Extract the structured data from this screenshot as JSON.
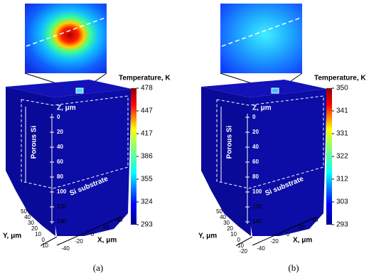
{
  "panels": [
    {
      "label": "(a)",
      "colorbar": {
        "title": "Temperature, K",
        "ticks": [
          478,
          447,
          417,
          386,
          355,
          324,
          293
        ]
      },
      "porous": "Porous Si",
      "substrate": "Si substrate",
      "z_label": "Z, μm",
      "z_ticks": [
        0,
        20,
        40,
        60,
        80,
        100,
        120,
        140
      ],
      "y_label": "Y, μm",
      "y_ticks": [
        50,
        40,
        30,
        20,
        10,
        0,
        -10
      ],
      "x_label": "X, μm",
      "x_ticks": [
        -40,
        -20,
        0,
        20,
        40
      ]
    },
    {
      "label": "(b)",
      "colorbar": {
        "title": "Temperature, K",
        "ticks": [
          350,
          341,
          331,
          322,
          312,
          303,
          293
        ]
      },
      "porous": "Porous Si",
      "substrate": "Si substrate",
      "z_label": "Z, μm",
      "z_ticks": [
        0,
        20,
        40,
        60,
        80,
        100,
        120,
        140
      ],
      "y_label": "Y, μm",
      "y_ticks": [
        50,
        40,
        30,
        20,
        10,
        0,
        -10,
        -20
      ],
      "x_label": "X, μm",
      "x_ticks": [
        -40,
        -20,
        0,
        20,
        40
      ]
    }
  ]
}
